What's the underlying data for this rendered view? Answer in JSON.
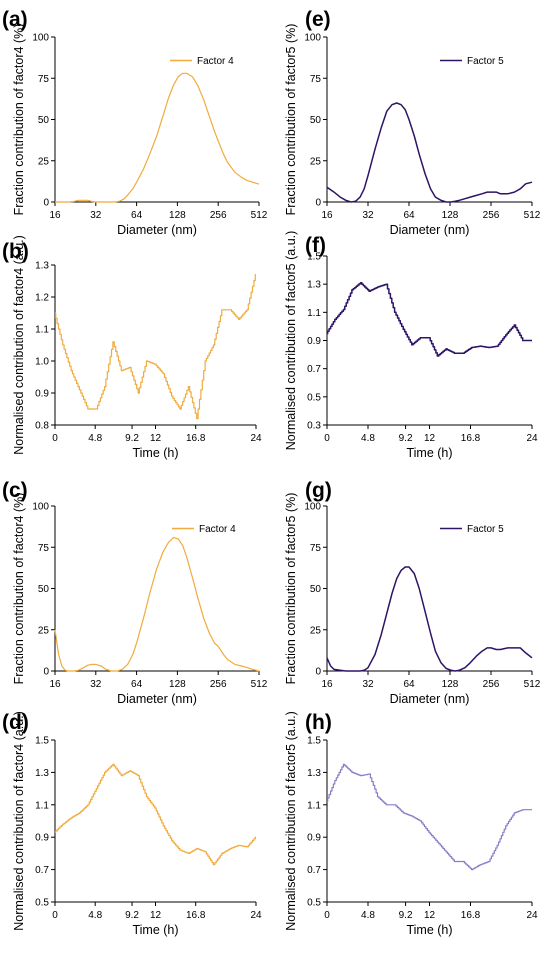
{
  "colors": {
    "orange": "#F0AB3C",
    "purple": "#2D1466",
    "lavender": "#8E7BC8"
  },
  "chart_data": [
    {
      "panel": "(a)",
      "type": "line",
      "scale": "log2",
      "xlabel": "Diameter (nm)",
      "ylabel": "Fraction contribution of factor4 (%)",
      "xlim": [
        16,
        512
      ],
      "ylim": [
        0,
        100
      ],
      "xticks": [
        16,
        32,
        64,
        128,
        256,
        512
      ],
      "xtick_labels": [
        "16",
        "32",
        "64",
        "128",
        "256",
        "512"
      ],
      "yticks": [
        0,
        25,
        50,
        75,
        100
      ],
      "ytick_labels": [
        "0",
        "25",
        "50",
        "75",
        "100"
      ],
      "legend": "Factor 4",
      "color": "orange",
      "series": [
        {
          "name": "Factor 4",
          "x": [
            16,
            18,
            20,
            22,
            24,
            26,
            28,
            30,
            32,
            36,
            40,
            44,
            48,
            52,
            56,
            60,
            64,
            72,
            80,
            90,
            100,
            110,
            120,
            130,
            140,
            150,
            165,
            180,
            200,
            220,
            240,
            256,
            280,
            300,
            340,
            380,
            420,
            460,
            500,
            512
          ],
          "y": [
            0,
            0,
            0,
            0.3,
            1,
            1,
            1,
            0.3,
            0,
            0,
            0,
            0,
            0.5,
            2,
            5,
            8,
            12,
            20,
            29,
            40,
            52,
            63,
            71,
            76,
            78,
            78,
            76,
            71,
            62,
            52,
            43,
            37,
            29,
            24,
            18,
            15,
            13,
            12,
            11,
            11
          ]
        }
      ]
    },
    {
      "panel": "(b)",
      "type": "line",
      "scale": "linear",
      "xlabel": "Time (h)",
      "ylabel": "Normalised contribution of factor4 (a.u.)",
      "xlim": [
        0,
        24
      ],
      "ylim": [
        0.8,
        1.3
      ],
      "xticks": [
        0,
        4.8,
        9.2,
        12,
        16.8,
        24
      ],
      "xtick_labels": [
        "0",
        "4.8",
        "9.2",
        "12",
        "16.8",
        "24"
      ],
      "yticks": [
        0.8,
        0.9,
        1.0,
        1.1,
        1.2,
        1.3
      ],
      "ytick_labels": [
        "0.8",
        "0.9",
        "1.0",
        "1.1",
        "1.2",
        "1.3"
      ],
      "color": "orange",
      "stepped": true,
      "series": [
        {
          "name": "",
          "x": [
            0,
            1,
            2,
            3,
            4,
            5,
            6,
            7,
            8,
            9,
            10,
            11,
            12,
            13,
            14,
            15,
            16,
            17,
            18,
            19,
            20,
            21,
            22,
            23,
            24
          ],
          "y": [
            1.15,
            1.05,
            0.97,
            0.91,
            0.85,
            0.85,
            0.92,
            1.06,
            0.97,
            0.98,
            0.9,
            1.0,
            0.99,
            0.96,
            0.89,
            0.85,
            0.92,
            0.82,
            1.0,
            1.05,
            1.16,
            1.16,
            1.13,
            1.16,
            1.27
          ]
        }
      ]
    },
    {
      "panel": "(c)",
      "type": "line",
      "scale": "log2",
      "xlabel": "Diameter (nm)",
      "ylabel": "Fraction contribution of factor4 (%)",
      "xlim": [
        16,
        512
      ],
      "ylim": [
        0,
        100
      ],
      "xticks": [
        16,
        32,
        64,
        128,
        256,
        512
      ],
      "xtick_labels": [
        "16",
        "32",
        "64",
        "128",
        "256",
        "512"
      ],
      "yticks": [
        0,
        25,
        50,
        75,
        100
      ],
      "ytick_labels": [
        "0",
        "25",
        "50",
        "75",
        "100"
      ],
      "legend": "Factor 4",
      "color": "orange",
      "series": [
        {
          "name": "Factor 4",
          "x": [
            16,
            17,
            18,
            19,
            20,
            22,
            24,
            26,
            28,
            30,
            32,
            35,
            38,
            42,
            46,
            50,
            55,
            60,
            64,
            72,
            80,
            90,
            100,
            110,
            120,
            130,
            140,
            150,
            165,
            180,
            200,
            220,
            240,
            256,
            280,
            300,
            340,
            380,
            420,
            460,
            512
          ],
          "y": [
            25,
            10,
            3,
            0.5,
            0,
            0,
            0.5,
            2,
            3.5,
            4,
            4,
            3,
            1,
            0,
            0,
            1,
            4,
            10,
            17,
            32,
            47,
            62,
            72,
            78,
            81,
            80,
            76,
            69,
            57,
            45,
            32,
            23,
            17,
            15,
            10,
            7,
            4,
            3,
            2,
            1,
            0
          ]
        }
      ]
    },
    {
      "panel": "(d)",
      "type": "line",
      "scale": "linear",
      "xlabel": "Time (h)",
      "ylabel": "Normalised contribution of factor4 (a.u.)",
      "xlim": [
        0,
        24
      ],
      "ylim": [
        0.5,
        1.5
      ],
      "xticks": [
        0,
        4.8,
        9.2,
        12,
        16.8,
        24
      ],
      "xtick_labels": [
        "0",
        "4.8",
        "9.2",
        "12",
        "16.8",
        "24"
      ],
      "yticks": [
        0.5,
        0.7,
        0.9,
        1.1,
        1.3,
        1.5
      ],
      "ytick_labels": [
        "0.5",
        "0.7",
        "0.9",
        "1.1",
        "1.3",
        "1.5"
      ],
      "color": "orange",
      "stepped": true,
      "series": [
        {
          "name": "",
          "x": [
            0,
            1,
            2,
            3,
            4,
            5,
            6,
            7,
            8,
            9,
            10,
            11,
            12,
            13,
            14,
            15,
            16,
            17,
            18,
            19,
            20,
            21,
            22,
            23,
            24
          ],
          "y": [
            0.93,
            0.98,
            1.02,
            1.05,
            1.1,
            1.2,
            1.3,
            1.35,
            1.28,
            1.31,
            1.28,
            1.15,
            1.08,
            0.97,
            0.88,
            0.82,
            0.8,
            0.83,
            0.81,
            0.73,
            0.8,
            0.83,
            0.85,
            0.84,
            0.9
          ]
        }
      ]
    },
    {
      "panel": "(e)",
      "type": "line",
      "scale": "log2",
      "xlabel": "Diameter (nm)",
      "ylabel": "Fraction contribution of factor5 (%)",
      "xlim": [
        16,
        512
      ],
      "ylim": [
        0,
        100
      ],
      "xticks": [
        16,
        32,
        64,
        128,
        256,
        512
      ],
      "xtick_labels": [
        "16",
        "32",
        "64",
        "128",
        "256",
        "512"
      ],
      "yticks": [
        0,
        25,
        50,
        75,
        100
      ],
      "ytick_labels": [
        "0",
        "25",
        "50",
        "75",
        "100"
      ],
      "legend": "Factor 5",
      "color": "purple",
      "series": [
        {
          "name": "Factor 5",
          "x": [
            16,
            18,
            20,
            22,
            24,
            26,
            28,
            30,
            32,
            36,
            40,
            44,
            48,
            52,
            56,
            60,
            64,
            70,
            76,
            84,
            92,
            100,
            110,
            120,
            130,
            140,
            150,
            165,
            180,
            200,
            220,
            240,
            256,
            280,
            300,
            340,
            380,
            420,
            460,
            512
          ],
          "y": [
            9,
            6,
            3,
            1,
            0,
            0.5,
            3,
            8,
            16,
            32,
            45,
            55,
            59,
            60,
            59,
            56,
            50,
            40,
            29,
            17,
            8,
            3,
            1,
            0,
            0,
            0.5,
            1,
            2,
            3,
            4,
            5,
            6,
            6,
            6,
            5,
            5,
            6,
            8,
            11,
            12
          ]
        }
      ]
    },
    {
      "panel": "(f)",
      "type": "line",
      "scale": "linear",
      "xlabel": "Time (h)",
      "ylabel": "Normalised contribution of factor5 (a.u.)",
      "xlim": [
        0,
        24
      ],
      "ylim": [
        0.3,
        1.5
      ],
      "xticks": [
        0,
        4.8,
        9.2,
        12,
        16.8,
        24
      ],
      "xtick_labels": [
        "0",
        "4.8",
        "9.2",
        "12",
        "16.8",
        "24"
      ],
      "yticks": [
        0.3,
        0.5,
        0.7,
        0.9,
        1.1,
        1.3,
        1.5
      ],
      "ytick_labels": [
        "0.3",
        "0.5",
        "0.7",
        "0.9",
        "1.1",
        "1.3",
        "1.5"
      ],
      "color": "purple",
      "stepped": true,
      "series": [
        {
          "name": "",
          "x": [
            0,
            1,
            2,
            3,
            4,
            5,
            6,
            7,
            8,
            9,
            10,
            11,
            12,
            13,
            14,
            15,
            16,
            17,
            18,
            19,
            20,
            21,
            22,
            23,
            24
          ],
          "y": [
            0.95,
            1.05,
            1.12,
            1.26,
            1.31,
            1.25,
            1.28,
            1.3,
            1.1,
            0.98,
            0.87,
            0.92,
            0.92,
            0.79,
            0.84,
            0.81,
            0.81,
            0.85,
            0.86,
            0.85,
            0.86,
            0.94,
            1.01,
            0.9,
            0.9
          ]
        }
      ]
    },
    {
      "panel": "(g)",
      "type": "line",
      "scale": "log2",
      "xlabel": "Diameter (nm)",
      "ylabel": "Fraction contribution of factor5 (%)",
      "xlim": [
        16,
        512
      ],
      "ylim": [
        0,
        100
      ],
      "xticks": [
        16,
        32,
        64,
        128,
        256,
        512
      ],
      "xtick_labels": [
        "16",
        "32",
        "64",
        "128",
        "256",
        "512"
      ],
      "yticks": [
        0,
        25,
        50,
        75,
        100
      ],
      "ytick_labels": [
        "0",
        "25",
        "50",
        "75",
        "100"
      ],
      "legend": "Factor 5",
      "color": "purple",
      "series": [
        {
          "name": "Factor 5",
          "x": [
            16,
            17,
            18,
            20,
            22,
            24,
            26,
            28,
            30,
            32,
            36,
            40,
            44,
            48,
            52,
            56,
            60,
            64,
            70,
            76,
            84,
            92,
            100,
            110,
            120,
            130,
            140,
            150,
            165,
            180,
            200,
            220,
            240,
            256,
            280,
            300,
            340,
            380,
            420,
            460,
            512
          ],
          "y": [
            8,
            3,
            1,
            0.5,
            0,
            0,
            0,
            0,
            0.5,
            2,
            10,
            22,
            35,
            47,
            56,
            61,
            63,
            63,
            59,
            50,
            36,
            23,
            12,
            5,
            1.5,
            0.5,
            0,
            0.5,
            2,
            5,
            9,
            12,
            14,
            14,
            13,
            13,
            14,
            14,
            14,
            11,
            8
          ]
        }
      ]
    },
    {
      "panel": "(h)",
      "type": "line",
      "scale": "linear",
      "xlabel": "Time (h)",
      "ylabel": "Normalised contribution of factor5 (a.u.)",
      "xlim": [
        0,
        24
      ],
      "ylim": [
        0.5,
        1.5
      ],
      "xticks": [
        0,
        4.8,
        9.2,
        12,
        16.8,
        24
      ],
      "xtick_labels": [
        "0",
        "4.8",
        "9.2",
        "12",
        "16.8",
        "24"
      ],
      "yticks": [
        0.5,
        0.7,
        0.9,
        1.1,
        1.3,
        1.5
      ],
      "ytick_labels": [
        "0.5",
        "0.7",
        "0.9",
        "1.1",
        "1.3",
        "1.5"
      ],
      "color": "lavender",
      "stepped": true,
      "series": [
        {
          "name": "",
          "x": [
            0,
            1,
            2,
            3,
            4,
            5,
            6,
            7,
            8,
            9,
            10,
            11,
            12,
            13,
            14,
            15,
            16,
            17,
            18,
            19,
            20,
            21,
            22,
            23,
            24
          ],
          "y": [
            1.12,
            1.25,
            1.35,
            1.3,
            1.28,
            1.29,
            1.15,
            1.1,
            1.1,
            1.05,
            1.03,
            1.0,
            0.93,
            0.87,
            0.81,
            0.75,
            0.75,
            0.7,
            0.73,
            0.75,
            0.85,
            0.97,
            1.05,
            1.07,
            1.07
          ]
        }
      ]
    }
  ]
}
